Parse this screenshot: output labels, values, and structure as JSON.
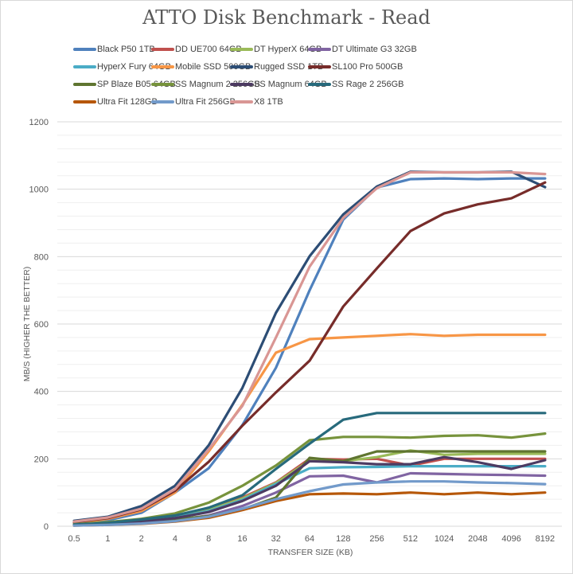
{
  "chart_data": {
    "type": "line",
    "title": "ATTO Disk Benchmark - Read",
    "xlabel": "TRANSFER SIZE (KB)",
    "ylabel": "MB/S (HIGHER THE BETTER)",
    "ylim": [
      0,
      1200
    ],
    "yticks": [
      0,
      200,
      400,
      600,
      800,
      1000,
      1200
    ],
    "grid": true,
    "legend_position": "top",
    "categories": [
      "0.5",
      "1",
      "2",
      "4",
      "8",
      "16",
      "32",
      "64",
      "128",
      "256",
      "512",
      "1024",
      "2048",
      "4096",
      "8192"
    ],
    "series": [
      {
        "name": "Black P50 1TB",
        "color": "#4f81bd",
        "values": [
          8,
          18,
          40,
          100,
          172,
          300,
          470,
          700,
          910,
          1005,
          1030,
          1032,
          1030,
          1032,
          1032
        ]
      },
      {
        "name": "DD UE700 64GB",
        "color": "#c0504d",
        "values": [
          5,
          10,
          18,
          30,
          50,
          85,
          130,
          200,
          198,
          200,
          180,
          200,
          200,
          200,
          200
        ]
      },
      {
        "name": "DT HyperX 64GB",
        "color": "#9bbb59",
        "values": [
          4,
          8,
          16,
          28,
          48,
          82,
          128,
          195,
          193,
          205,
          225,
          212,
          215,
          215,
          215
        ]
      },
      {
        "name": "DT Ultimate G3 32GB",
        "color": "#8064a2",
        "values": [
          3,
          6,
          10,
          18,
          32,
          60,
          100,
          148,
          150,
          130,
          157,
          155,
          153,
          152,
          150
        ]
      },
      {
        "name": "HyperX Fury 64GB",
        "color": "#4bacc6",
        "values": [
          4,
          8,
          15,
          26,
          45,
          78,
          125,
          172,
          175,
          176,
          178,
          178,
          178,
          178,
          178
        ]
      },
      {
        "name": "Mobile SSD 500GB",
        "color": "#f79646",
        "values": [
          10,
          22,
          45,
          100,
          222,
          360,
          515,
          555,
          560,
          565,
          570,
          565,
          568,
          568,
          568
        ]
      },
      {
        "name": "Rugged SSD 1TB",
        "color": "#2c4d75",
        "values": [
          16,
          28,
          60,
          120,
          240,
          410,
          633,
          801,
          925,
          1008,
          1052,
          1050,
          1050,
          1052,
          1006
        ]
      },
      {
        "name": "SL100 Pro 500GB",
        "color": "#772c2a",
        "values": [
          12,
          24,
          50,
          105,
          191,
          298,
          397,
          491,
          652,
          765,
          876,
          928,
          955,
          973,
          1020
        ]
      },
      {
        "name": "SP Blaze B05 64GB",
        "color": "#5f7530",
        "values": [
          3,
          7,
          12,
          20,
          30,
          50,
          85,
          203,
          193,
          222,
          222,
          222,
          222,
          222,
          222
        ]
      },
      {
        "name": "SS Magnum 2 256GB",
        "color": "#77933c",
        "values": [
          6,
          12,
          22,
          38,
          70,
          120,
          180,
          255,
          265,
          265,
          263,
          268,
          270,
          263,
          275
        ]
      },
      {
        "name": "SS Magnum 64GB",
        "color": "#4d3b62",
        "values": [
          4,
          8,
          14,
          24,
          42,
          75,
          120,
          193,
          190,
          184,
          184,
          205,
          190,
          170,
          196
        ]
      },
      {
        "name": "SS Rage 2 256GB",
        "color": "#276a7c",
        "values": [
          5,
          10,
          20,
          32,
          55,
          92,
          170,
          245,
          316,
          336,
          336,
          336,
          336,
          336,
          336
        ]
      },
      {
        "name": "Ultra Fit 128GB",
        "color": "#b65708",
        "values": [
          2,
          4,
          7,
          14,
          25,
          48,
          75,
          95,
          97,
          95,
          100,
          95,
          100,
          95,
          100
        ]
      },
      {
        "name": "Ultra Fit 256GB",
        "color": "#729aca",
        "values": [
          2,
          4,
          8,
          15,
          28,
          52,
          80,
          104,
          124,
          130,
          133,
          133,
          130,
          128,
          125
        ]
      },
      {
        "name": "X8 1TB",
        "color": "#d99694",
        "values": [
          14,
          26,
          52,
          110,
          228,
          357,
          560,
          770,
          915,
          1003,
          1050,
          1050,
          1050,
          1050,
          1045
        ]
      }
    ]
  }
}
